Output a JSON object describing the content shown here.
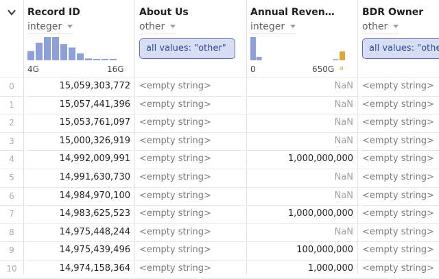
{
  "columns": [
    {
      "name": "Record ID",
      "type": "integer",
      "hist_min": "4G",
      "hist_max": "16G",
      "hist_bars": [
        0.4,
        0.75,
        1.0,
        1.0,
        0.7,
        0.55,
        0.3,
        0.08,
        0.06,
        0.06,
        0.06
      ]
    },
    {
      "name": "About Us",
      "type": "other",
      "summary": "all values: \"other\""
    },
    {
      "name": "Annual Reven…",
      "type": "integer",
      "hist_min": "0",
      "hist_max": "650G",
      "null_symbol": "⌀",
      "hist_bars": [
        1.0,
        0.15,
        0,
        0,
        0,
        0,
        0,
        0,
        0,
        0,
        0,
        0,
        0,
        0,
        0.05
      ],
      "null_fraction": 0.38
    },
    {
      "name": "BDR Owner",
      "type": "other",
      "summary": "all values: \"other\""
    }
  ],
  "colors": {
    "bar": "#8ea0d8",
    "null_bar": "#dba63a",
    "summary_bg": "#d7def4",
    "summary_border": "#5a71b8"
  },
  "rows": [
    {
      "idx": "0",
      "record_id": "15,059,303,772",
      "about_us": "<empty string>",
      "annual_revenue": "NaN",
      "bdr_owner": "<empty string>"
    },
    {
      "idx": "1",
      "record_id": "15,057,441,396",
      "about_us": "<empty string>",
      "annual_revenue": "NaN",
      "bdr_owner": "<empty string>"
    },
    {
      "idx": "2",
      "record_id": "15,053,761,097",
      "about_us": "<empty string>",
      "annual_revenue": "NaN",
      "bdr_owner": "<empty string>"
    },
    {
      "idx": "3",
      "record_id": "15,000,326,919",
      "about_us": "<empty string>",
      "annual_revenue": "NaN",
      "bdr_owner": "<empty string>"
    },
    {
      "idx": "4",
      "record_id": "14,992,009,991",
      "about_us": "<empty string>",
      "annual_revenue": "1,000,000,000",
      "bdr_owner": "<empty string>"
    },
    {
      "idx": "5",
      "record_id": "14,991,630,730",
      "about_us": "<empty string>",
      "annual_revenue": "NaN",
      "bdr_owner": "<empty string>"
    },
    {
      "idx": "6",
      "record_id": "14,984,970,100",
      "about_us": "<empty string>",
      "annual_revenue": "NaN",
      "bdr_owner": "<empty string>"
    },
    {
      "idx": "7",
      "record_id": "14,983,625,523",
      "about_us": "<empty string>",
      "annual_revenue": "1,000,000,000",
      "bdr_owner": "<empty string>"
    },
    {
      "idx": "8",
      "record_id": "14,975,448,244",
      "about_us": "<empty string>",
      "annual_revenue": "NaN",
      "bdr_owner": "<empty string>"
    },
    {
      "idx": "9",
      "record_id": "14,975,439,496",
      "about_us": "<empty string>",
      "annual_revenue": "100,000,000",
      "bdr_owner": "<empty string>"
    },
    {
      "idx": "10",
      "record_id": "14,974,158,364",
      "about_us": "<empty string>",
      "annual_revenue": "1,000,000",
      "bdr_owner": "<empty string>"
    }
  ]
}
